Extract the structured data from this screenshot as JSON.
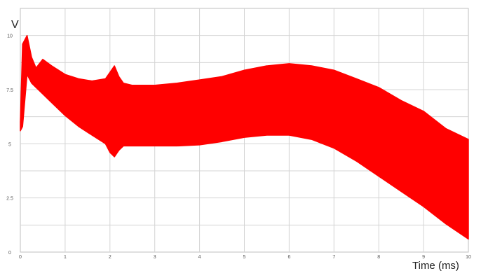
{
  "chart_data": {
    "type": "area",
    "title": "",
    "xlabel": "Time (ms)",
    "ylabel": "V",
    "xlim": [
      0,
      10
    ],
    "ylim": [
      0,
      11.25
    ],
    "grid": true,
    "x_ticks": [
      "0",
      "1",
      "2",
      "3",
      "4",
      "5",
      "6",
      "7",
      "8",
      "9",
      "10"
    ],
    "y_ticks": [
      "0",
      "2.5",
      "5",
      "7.5",
      "10"
    ],
    "y_tick_values": [
      0,
      2.5,
      5,
      7.5,
      10
    ],
    "series": [
      {
        "color": "#ff0000",
        "x": [
          0,
          0.05,
          0.15,
          0.25,
          0.35,
          0.5,
          0.7,
          1.0,
          1.3,
          1.6,
          1.9,
          2.0,
          2.1,
          2.2,
          2.3,
          2.5,
          3.0,
          3.5,
          4.0,
          4.5,
          5.0,
          5.5,
          6.0,
          6.5,
          7.0,
          7.5,
          8.0,
          8.5,
          9.0,
          9.5,
          10.0
        ],
        "upper": [
          6.0,
          9.6,
          10.0,
          9.0,
          8.5,
          8.9,
          8.6,
          8.2,
          8.0,
          7.9,
          8.0,
          8.3,
          8.6,
          8.1,
          7.8,
          7.7,
          7.7,
          7.8,
          7.95,
          8.1,
          8.4,
          8.6,
          8.7,
          8.6,
          8.4,
          8.0,
          7.6,
          7.0,
          6.5,
          5.7,
          5.2
        ],
        "lower": [
          5.6,
          5.8,
          8.2,
          7.8,
          7.6,
          7.3,
          6.9,
          6.3,
          5.8,
          5.4,
          5.0,
          4.6,
          4.4,
          4.7,
          4.9,
          4.9,
          4.9,
          4.9,
          4.95,
          5.1,
          5.3,
          5.4,
          5.4,
          5.2,
          4.8,
          4.2,
          3.5,
          2.8,
          2.1,
          1.3,
          0.6
        ]
      }
    ]
  }
}
